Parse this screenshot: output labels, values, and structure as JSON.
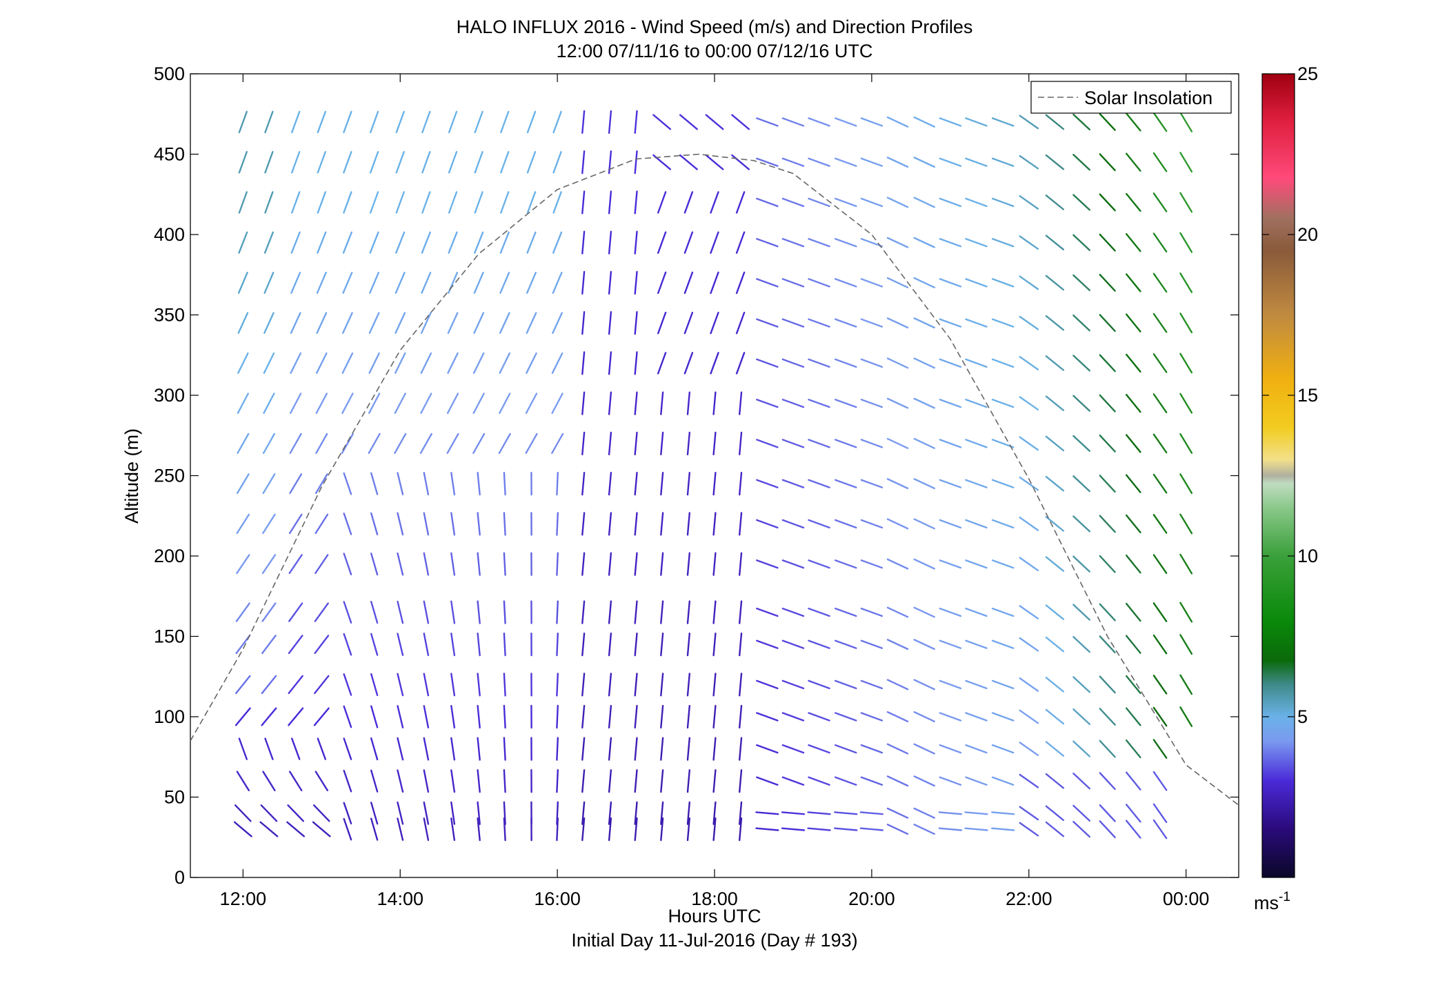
{
  "chart_data": {
    "type": "quiver",
    "title": "HALO INFLUX 2016 - Wind Speed (m/s) and Direction Profiles",
    "subtitle": "12:00 07/11/16 to 00:00 07/12/16  UTC",
    "xlabel": "Hours UTC",
    "xlabel2": "Initial Day 11-Jul-2016 (Day # 193)",
    "ylabel": "Altitude (m)",
    "xlim": [
      11.33,
      24.67
    ],
    "ylim": [
      0,
      500
    ],
    "x_ticks": [
      12,
      14,
      16,
      18,
      20,
      22,
      24
    ],
    "x_tick_labels": [
      "12:00",
      "14:00",
      "16:00",
      "18:00",
      "20:00",
      "22:00",
      "00:00"
    ],
    "y_ticks": [
      0,
      50,
      100,
      150,
      200,
      250,
      300,
      350,
      400,
      450,
      500
    ],
    "y_tick_labels": [
      "0",
      "50",
      "100",
      "150",
      "200",
      "250",
      "300",
      "350",
      "400",
      "450",
      "500"
    ],
    "legend": {
      "entries": [
        "Solar Insolation"
      ],
      "placement": "top-right"
    },
    "colorbar": {
      "min": 0,
      "max": 25,
      "ticks": [
        5,
        10,
        15,
        20,
        25
      ],
      "tick_labels": [
        "5",
        "10",
        "15",
        "20",
        "25"
      ],
      "unit_base": "ms",
      "unit_exp": "-1"
    },
    "solar_insolation": {
      "style": "dashed",
      "color": "#666666",
      "points": [
        [
          11.33,
          85
        ],
        [
          12,
          142
        ],
        [
          13,
          243
        ],
        [
          14,
          328
        ],
        [
          15,
          388
        ],
        [
          16,
          428
        ],
        [
          17,
          447
        ],
        [
          17.8,
          450
        ],
        [
          18.5,
          446
        ],
        [
          19,
          438
        ],
        [
          20,
          400
        ],
        [
          21,
          335
        ],
        [
          22,
          248
        ],
        [
          23,
          150
        ],
        [
          24,
          70
        ],
        [
          24.67,
          45
        ]
      ]
    },
    "wind_times_hours": [
      12,
      12.33,
      12.67,
      13,
      13.33,
      13.67,
      14,
      14.33,
      14.67,
      15,
      15.33,
      15.67,
      16,
      16.33,
      16.67,
      17,
      17.33,
      17.67,
      18,
      18.33,
      18.67,
      19,
      19.33,
      19.67,
      20,
      20.33,
      20.67,
      21,
      21.33,
      21.67,
      22,
      22.33,
      22.67,
      23,
      23.33,
      23.67,
      24
    ],
    "wind_altitudes_m": [
      30,
      40,
      60,
      80,
      100,
      120,
      145,
      165,
      195,
      220,
      245,
      270,
      295,
      320,
      345,
      370,
      395,
      420,
      445,
      470
    ],
    "wind_description": "wind barbs: morning weak northwesterly/northerly (2-4 m/s, purple-blue), midday southerly aloft, afternoon/evening west-northwesterly 2-5 m/s, late evening southeasterly 5-8 m/s aloft (teal-green)"
  }
}
